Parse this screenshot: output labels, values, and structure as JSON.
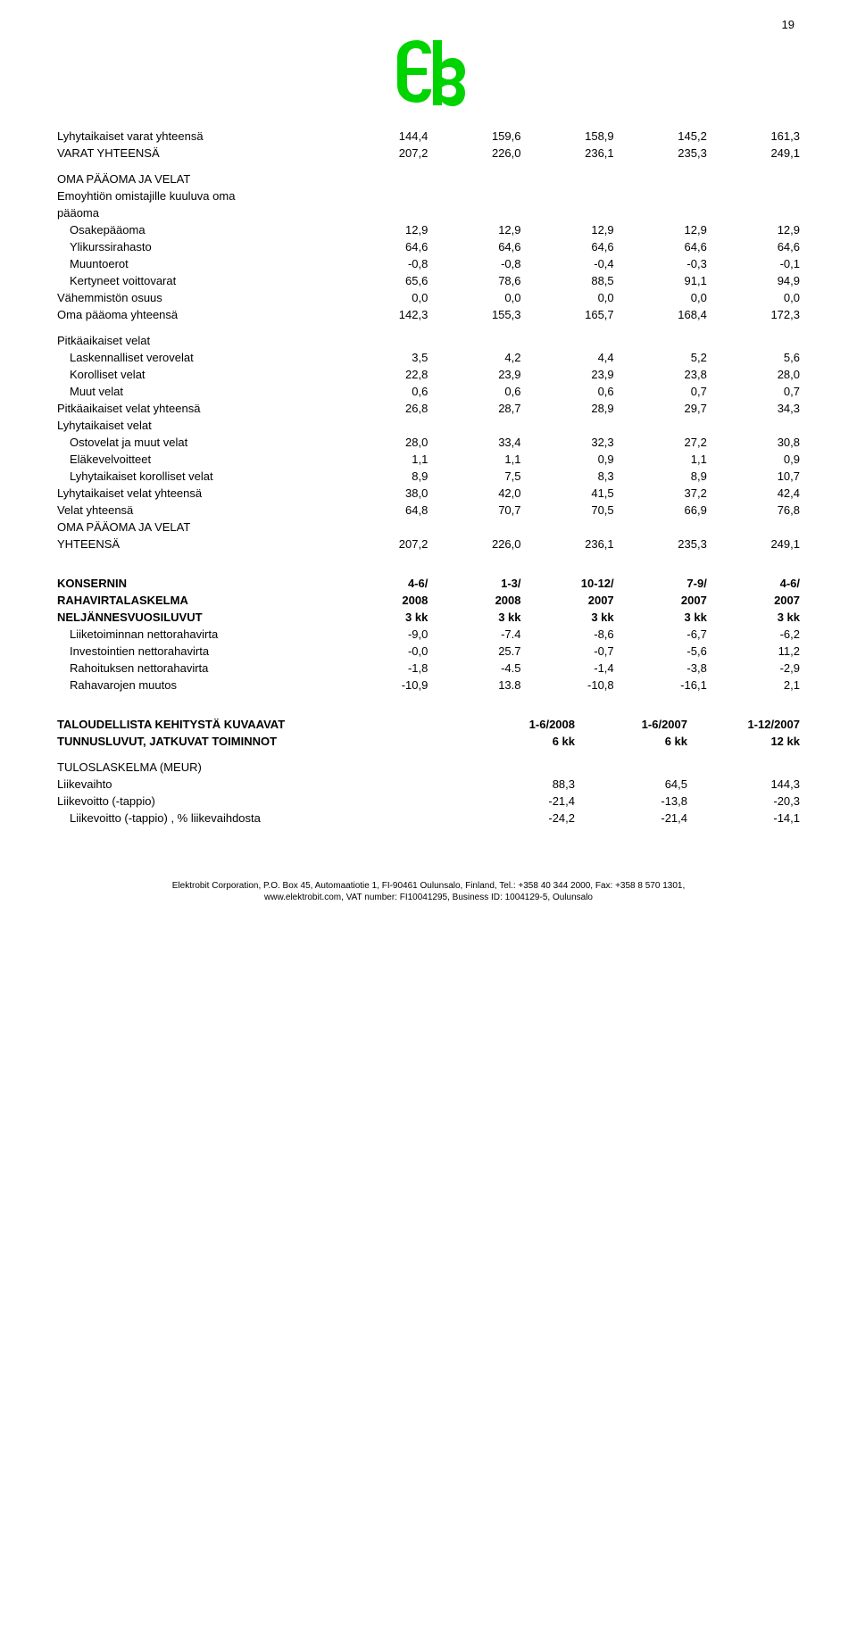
{
  "page_number": "19",
  "logo_color": "#00d400",
  "table1": {
    "rows": [
      {
        "label": "Lyhytaikaiset varat yhteensä",
        "vals": [
          "144,4",
          "159,6",
          "158,9",
          "145,2",
          "161,3"
        ],
        "bold": false,
        "indent": false,
        "gap": false
      },
      {
        "label": "VARAT YHTEENSÄ",
        "vals": [
          "207,2",
          "226,0",
          "236,1",
          "235,3",
          "249,1"
        ],
        "bold": false,
        "indent": false,
        "gap": false
      },
      {
        "label": "OMA PÄÄOMA JA VELAT",
        "vals": [
          "",
          "",
          "",
          "",
          ""
        ],
        "bold": false,
        "indent": false,
        "gap": true
      },
      {
        "label": "Emoyhtiön omistajille kuuluva oma",
        "vals": [
          "",
          "",
          "",
          "",
          ""
        ],
        "bold": false,
        "indent": false,
        "gap": false
      },
      {
        "label": "pääoma",
        "vals": [
          "",
          "",
          "",
          "",
          ""
        ],
        "bold": false,
        "indent": false,
        "gap": false
      },
      {
        "label": "Osakepääoma",
        "vals": [
          "12,9",
          "12,9",
          "12,9",
          "12,9",
          "12,9"
        ],
        "bold": false,
        "indent": true,
        "gap": false
      },
      {
        "label": "Ylikurssirahasto",
        "vals": [
          "64,6",
          "64,6",
          "64,6",
          "64,6",
          "64,6"
        ],
        "bold": false,
        "indent": true,
        "gap": false
      },
      {
        "label": "Muuntoerot",
        "vals": [
          "-0,8",
          "-0,8",
          "-0,4",
          "-0,3",
          "-0,1"
        ],
        "bold": false,
        "indent": true,
        "gap": false
      },
      {
        "label": "Kertyneet voittovarat",
        "vals": [
          "65,6",
          "78,6",
          "88,5",
          "91,1",
          "94,9"
        ],
        "bold": false,
        "indent": true,
        "gap": false
      },
      {
        "label": "Vähemmistön osuus",
        "vals": [
          "0,0",
          "0,0",
          "0,0",
          "0,0",
          "0,0"
        ],
        "bold": false,
        "indent": false,
        "gap": false
      },
      {
        "label": "Oma pääoma yhteensä",
        "vals": [
          "142,3",
          "155,3",
          "165,7",
          "168,4",
          "172,3"
        ],
        "bold": false,
        "indent": false,
        "gap": false
      },
      {
        "label": "Pitkäaikaiset velat",
        "vals": [
          "",
          "",
          "",
          "",
          ""
        ],
        "bold": false,
        "indent": false,
        "gap": true
      },
      {
        "label": "Laskennalliset verovelat",
        "vals": [
          "3,5",
          "4,2",
          "4,4",
          "5,2",
          "5,6"
        ],
        "bold": false,
        "indent": true,
        "gap": false
      },
      {
        "label": "Korolliset velat",
        "vals": [
          "22,8",
          "23,9",
          "23,9",
          "23,8",
          "28,0"
        ],
        "bold": false,
        "indent": true,
        "gap": false
      },
      {
        "label": "Muut velat",
        "vals": [
          "0,6",
          "0,6",
          "0,6",
          "0,7",
          "0,7"
        ],
        "bold": false,
        "indent": true,
        "gap": false
      },
      {
        "label": "Pitkäaikaiset velat yhteensä",
        "vals": [
          "26,8",
          "28,7",
          "28,9",
          "29,7",
          "34,3"
        ],
        "bold": false,
        "indent": false,
        "gap": false
      },
      {
        "label": "Lyhytaikaiset velat",
        "vals": [
          "",
          "",
          "",
          "",
          ""
        ],
        "bold": false,
        "indent": false,
        "gap": false
      },
      {
        "label": "Ostovelat ja muut velat",
        "vals": [
          "28,0",
          "33,4",
          "32,3",
          "27,2",
          "30,8"
        ],
        "bold": false,
        "indent": true,
        "gap": false
      },
      {
        "label": "Eläkevelvoitteet",
        "vals": [
          "1,1",
          "1,1",
          "0,9",
          "1,1",
          "0,9"
        ],
        "bold": false,
        "indent": true,
        "gap": false
      },
      {
        "label": "Lyhytaikaiset korolliset velat",
        "vals": [
          "8,9",
          "7,5",
          "8,3",
          "8,9",
          "10,7"
        ],
        "bold": false,
        "indent": true,
        "gap": false
      },
      {
        "label": "Lyhytaikaiset velat yhteensä",
        "vals": [
          "38,0",
          "42,0",
          "41,5",
          "37,2",
          "42,4"
        ],
        "bold": false,
        "indent": false,
        "gap": false
      },
      {
        "label": "Velat yhteensä",
        "vals": [
          "64,8",
          "70,7",
          "70,5",
          "66,9",
          "76,8"
        ],
        "bold": false,
        "indent": false,
        "gap": false
      },
      {
        "label": "OMA PÄÄOMA JA VELAT",
        "vals": [
          "",
          "",
          "",
          "",
          ""
        ],
        "bold": false,
        "indent": false,
        "gap": false
      },
      {
        "label": "YHTEENSÄ",
        "vals": [
          "207,2",
          "226,0",
          "236,1",
          "235,3",
          "249,1"
        ],
        "bold": false,
        "indent": false,
        "gap": false
      }
    ]
  },
  "table2": {
    "header": [
      {
        "label": "KONSERNIN",
        "vals": [
          "4-6/",
          "1-3/",
          "10-12/",
          "7-9/",
          "4-6/"
        ]
      },
      {
        "label": "RAHAVIRTALASKELMA",
        "vals": [
          "2008",
          "2008",
          "2007",
          "2007",
          "2007"
        ]
      },
      {
        "label": "NELJÄNNESVUOSILUVUT",
        "vals": [
          "3 kk",
          "3 kk",
          "3 kk",
          "3 kk",
          "3 kk"
        ]
      }
    ],
    "rows": [
      {
        "label": "Liiketoiminnan nettorahavirta",
        "vals": [
          "-9,0",
          "-7.4",
          "-8,6",
          "-6,7",
          "-6,2"
        ],
        "indent": true
      },
      {
        "label": "Investointien nettorahavirta",
        "vals": [
          "-0,0",
          "25.7",
          "-0,7",
          "-5,6",
          "11,2"
        ],
        "indent": true
      },
      {
        "label": "Rahoituksen nettorahavirta",
        "vals": [
          "-1,8",
          "-4.5",
          "-1,4",
          "-3,8",
          "-2,9"
        ],
        "indent": true
      },
      {
        "label": "Rahavarojen muutos",
        "vals": [
          "-10,9",
          "13.8",
          "-10,8",
          "-16,1",
          "2,1"
        ],
        "indent": true
      }
    ]
  },
  "table3": {
    "header": [
      {
        "label": "TALOUDELLISTA KEHITYSTÄ KUVAAVAT",
        "vals": [
          "1-6/2008",
          "1-6/2007",
          "1-12/2007"
        ]
      },
      {
        "label": "TUNNUSLUVUT, JATKUVAT TOIMINNOT",
        "vals": [
          "6 kk",
          "6 kk",
          "12 kk"
        ]
      }
    ],
    "rows": [
      {
        "label": "TULOSLASKELMA (MEUR)",
        "vals": [
          "",
          "",
          ""
        ],
        "indent": false,
        "gap": true
      },
      {
        "label": "Liikevaihto",
        "vals": [
          "88,3",
          "64,5",
          "144,3"
        ],
        "indent": false,
        "gap": false
      },
      {
        "label": "Liikevoitto (-tappio)",
        "vals": [
          "-21,4",
          "-13,8",
          "-20,3"
        ],
        "indent": false,
        "gap": false
      },
      {
        "label": "Liikevoitto (-tappio) , % liikevaihdosta",
        "vals": [
          "-24,2",
          "-21,4",
          "-14,1"
        ],
        "indent": true,
        "gap": false
      }
    ]
  },
  "footer": {
    "line1": "Elektrobit Corporation, P.O. Box 45, Automaatiotie 1, FI-90461 Oulunsalo, Finland, Tel.: +358 40 344 2000, Fax: +358 8 570 1301,",
    "line2": "www.elektrobit.com, VAT number: FI10041295, Business ID: 1004129-5, Oulunsalo"
  }
}
